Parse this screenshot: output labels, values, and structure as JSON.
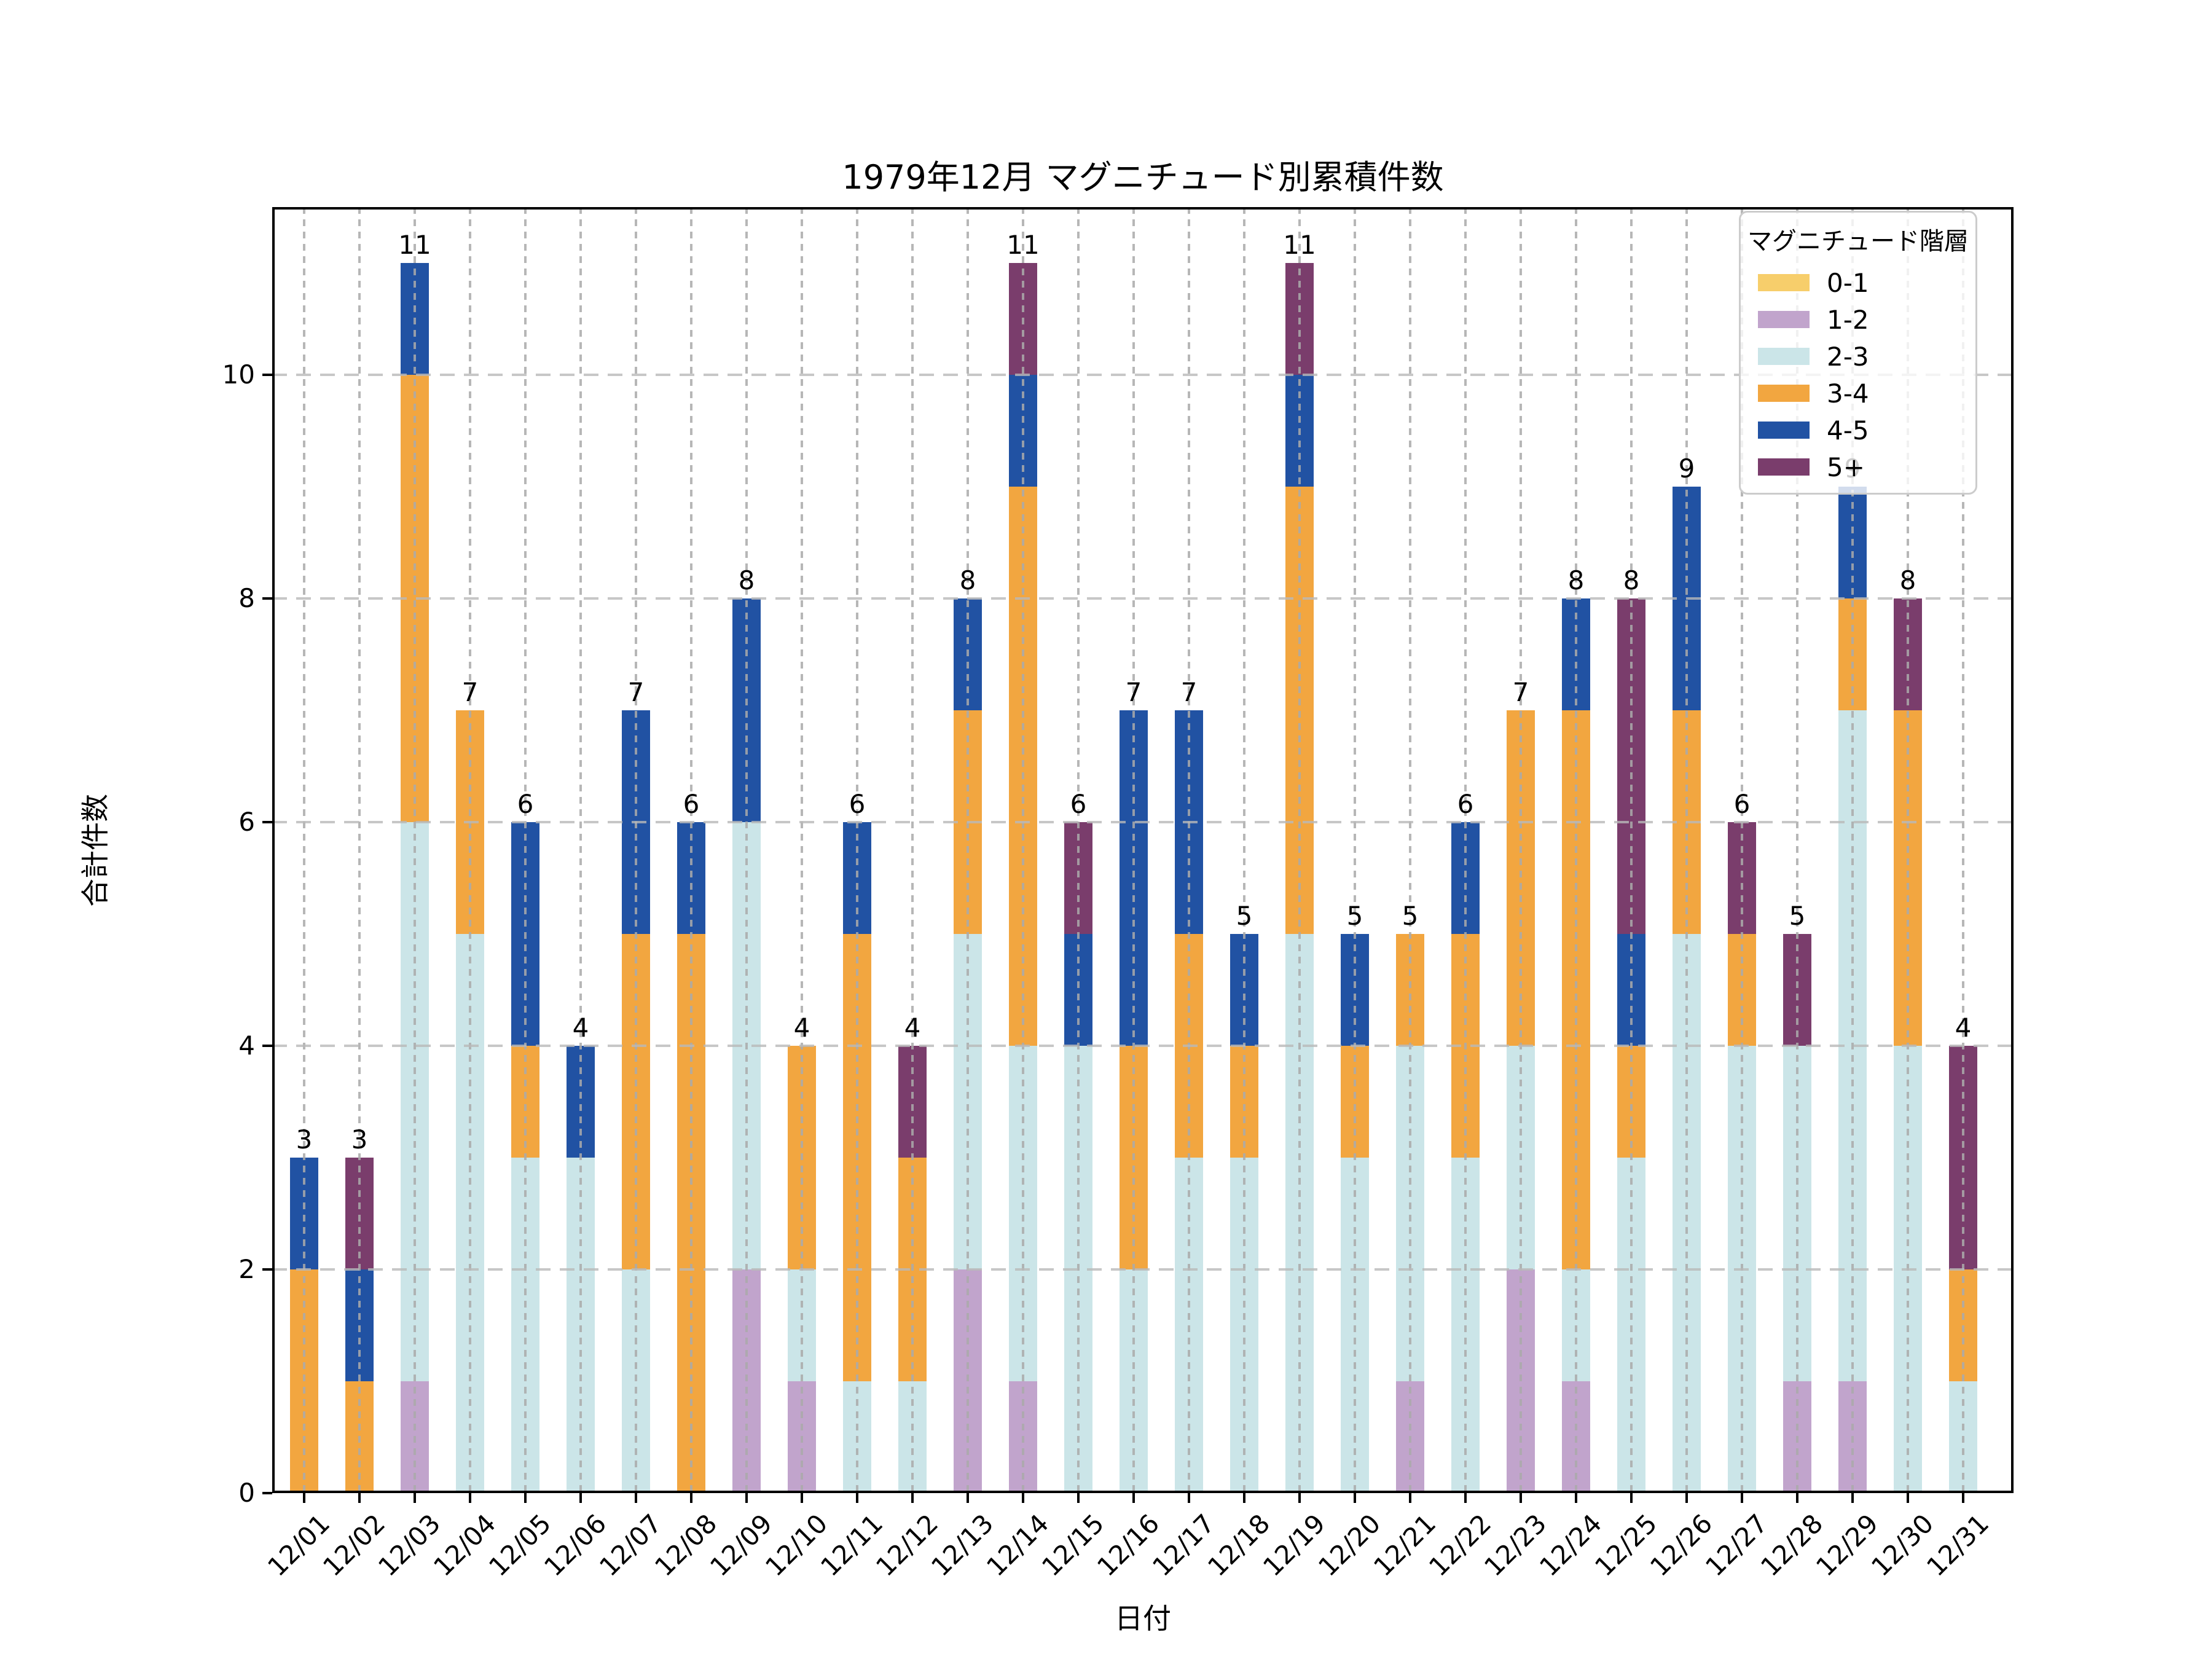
{
  "chart_data": {
    "type": "bar",
    "stacked": true,
    "title": "1979年12月 マグニチュード別累積件数",
    "xlabel": "日付",
    "ylabel": "合計件数",
    "legend_title": "マグニチュード階層",
    "legend_position": "upper right",
    "grid": true,
    "background": "#ffffff",
    "gridline_color": "#b5b5b5",
    "ylim": [
      0,
      11.5
    ],
    "yticks": [
      0,
      2,
      4,
      6,
      8,
      10
    ],
    "categories": [
      "12/01",
      "12/02",
      "12/03",
      "12/04",
      "12/05",
      "12/06",
      "12/07",
      "12/08",
      "12/09",
      "12/10",
      "12/11",
      "12/12",
      "12/13",
      "12/14",
      "12/15",
      "12/16",
      "12/17",
      "12/18",
      "12/19",
      "12/20",
      "12/21",
      "12/22",
      "12/23",
      "12/24",
      "12/25",
      "12/26",
      "12/27",
      "12/28",
      "12/29",
      "12/30",
      "12/31"
    ],
    "series": [
      {
        "name": "0-1",
        "color": "#F7CE6B",
        "values": [
          0,
          0,
          0,
          0,
          0,
          0,
          0,
          0,
          0,
          0,
          0,
          0,
          0,
          0,
          0,
          0,
          0,
          0,
          0,
          0,
          0,
          0,
          0,
          0,
          0,
          0,
          0,
          0,
          0,
          0,
          0
        ]
      },
      {
        "name": "1-2",
        "color": "#C1A4CC",
        "values": [
          0,
          0,
          1,
          0,
          0,
          0,
          0,
          0,
          2,
          1,
          0,
          0,
          2,
          1,
          0,
          0,
          0,
          0,
          0,
          0,
          1,
          0,
          2,
          1,
          0,
          0,
          0,
          1,
          1,
          0,
          0
        ]
      },
      {
        "name": "2-3",
        "color": "#CBE5E8",
        "values": [
          0,
          0,
          5,
          5,
          3,
          3,
          2,
          0,
          4,
          1,
          1,
          1,
          3,
          3,
          4,
          2,
          3,
          3,
          5,
          3,
          3,
          3,
          2,
          1,
          3,
          5,
          4,
          3,
          6,
          4,
          1
        ]
      },
      {
        "name": "3-4",
        "color": "#F2A640",
        "values": [
          2,
          1,
          4,
          2,
          1,
          0,
          3,
          5,
          0,
          2,
          4,
          2,
          2,
          5,
          0,
          2,
          2,
          1,
          4,
          1,
          1,
          2,
          3,
          5,
          1,
          2,
          1,
          0,
          1,
          3,
          1
        ]
      },
      {
        "name": "4-5",
        "color": "#2152A3",
        "values": [
          1,
          1,
          1,
          0,
          2,
          1,
          2,
          1,
          2,
          0,
          1,
          0,
          1,
          1,
          1,
          3,
          2,
          1,
          1,
          1,
          0,
          1,
          0,
          1,
          1,
          2,
          0,
          0,
          1,
          0,
          0
        ]
      },
      {
        "name": "5+",
        "color": "#7A3D6C",
        "values": [
          0,
          1,
          0,
          0,
          0,
          0,
          0,
          0,
          0,
          0,
          0,
          1,
          0,
          1,
          1,
          0,
          0,
          0,
          1,
          0,
          0,
          0,
          0,
          0,
          3,
          0,
          1,
          1,
          0,
          1,
          2
        ]
      }
    ],
    "bar_labels": [
      3,
      3,
      11,
      7,
      6,
      4,
      7,
      6,
      8,
      4,
      6,
      4,
      8,
      11,
      6,
      7,
      7,
      5,
      11,
      5,
      5,
      6,
      7,
      8,
      8,
      9,
      6,
      5,
      9,
      8,
      4
    ]
  }
}
